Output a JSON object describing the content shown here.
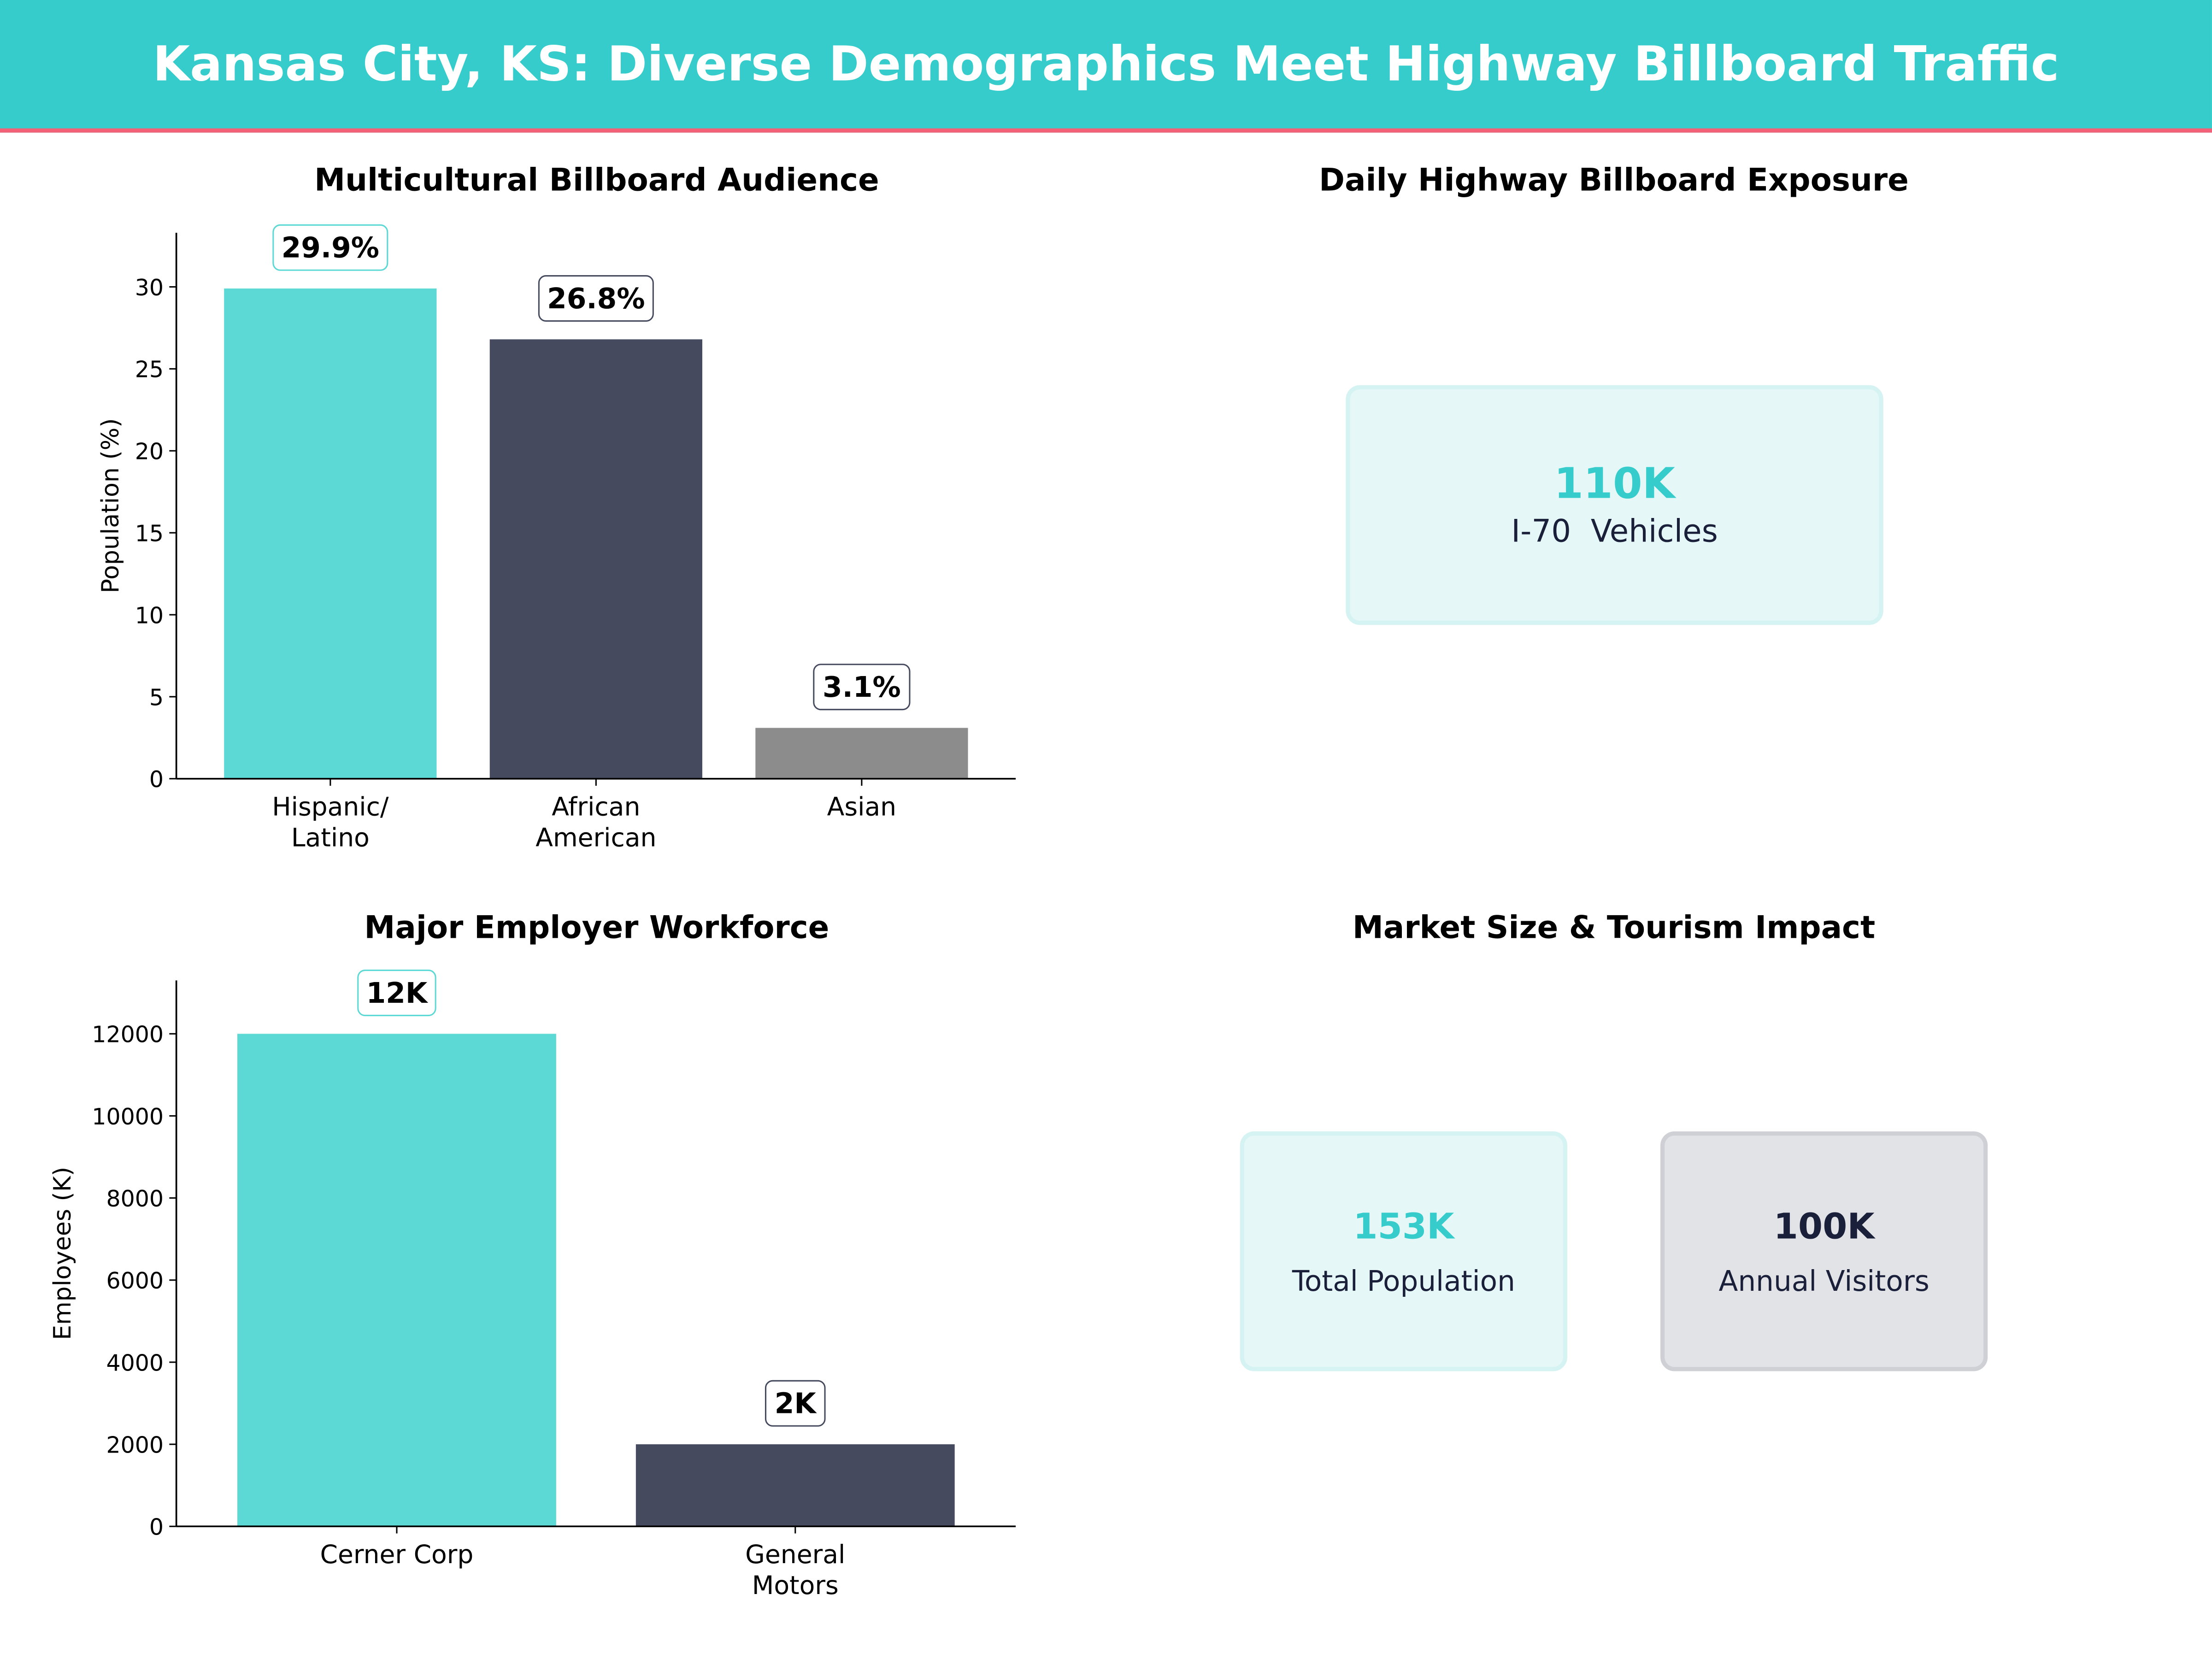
{
  "title": "Kansas City, KS: Diverse Demographics Meet Highway Billboard Traffic",
  "colors": {
    "header": "#36CCCC",
    "accent_line": "#F26177",
    "teal": "#5DD9D5",
    "navy": "#464A5F",
    "gray": "#8C8C8C",
    "dark_text": "#1A1F3A"
  },
  "chart_data": [
    {
      "type": "bar",
      "title": "Multicultural Billboard Audience",
      "xlabel": "",
      "ylabel": "Population (%)",
      "categories": [
        "Hispanic/\nLatino",
        "African\nAmerican",
        "Asian"
      ],
      "values": [
        29.9,
        26.8,
        3.1
      ],
      "labels": [
        "29.9%",
        "26.8%",
        "3.1%"
      ],
      "colors": [
        "#5DD9D5",
        "#464A5F",
        "#8C8C8C"
      ],
      "ylim": [
        0,
        33.3
      ],
      "yticks": [
        0,
        5,
        10,
        15,
        20,
        25,
        30
      ],
      "grid": false
    },
    {
      "type": "bar",
      "title": "Major Employer Workforce",
      "xlabel": "",
      "ylabel": "Employees (K)",
      "categories": [
        "Cerner Corp",
        "General\nMotors"
      ],
      "values": [
        12000,
        2000
      ],
      "labels": [
        "12K",
        "2K"
      ],
      "colors": [
        "#5DD9D5",
        "#464A5F"
      ],
      "ylim": [
        0,
        13300
      ],
      "yticks": [
        0,
        2000,
        4000,
        6000,
        8000,
        10000,
        12000
      ],
      "grid": false
    }
  ],
  "exposure": {
    "title": "Daily Highway Billboard Exposure",
    "value": "110K",
    "label": "I-70  Vehicles"
  },
  "market": {
    "title": "Market Size & Tourism Impact",
    "cards": [
      {
        "value": "153K",
        "label": "Total Population"
      },
      {
        "value": "100K",
        "label": "Annual Visitors"
      }
    ]
  }
}
